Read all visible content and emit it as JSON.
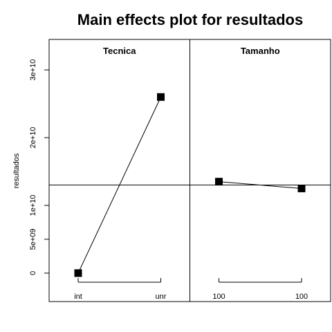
{
  "chart_data": {
    "type": "line",
    "title": "Main effects plot for resultados",
    "ylabel": "resultados",
    "ylim": [
      -4200000000,
      34500000000
    ],
    "yticks": [
      {
        "value": 0,
        "label": "0"
      },
      {
        "value": 5000000000,
        "label": "5e+09"
      },
      {
        "value": 10000000000,
        "label": "1e+10"
      },
      {
        "value": 20000000000,
        "label": "2e+10"
      },
      {
        "value": 30000000000,
        "label": "3e+10"
      }
    ],
    "grand_mean": 13000000000,
    "panels": [
      {
        "factor": "Tecnica",
        "categories": [
          "int",
          "unr"
        ],
        "values": [
          0,
          26000000000
        ]
      },
      {
        "factor": "Tamanho",
        "categories": [
          "100",
          "100"
        ],
        "values": [
          13500000000,
          12500000000
        ]
      }
    ]
  }
}
